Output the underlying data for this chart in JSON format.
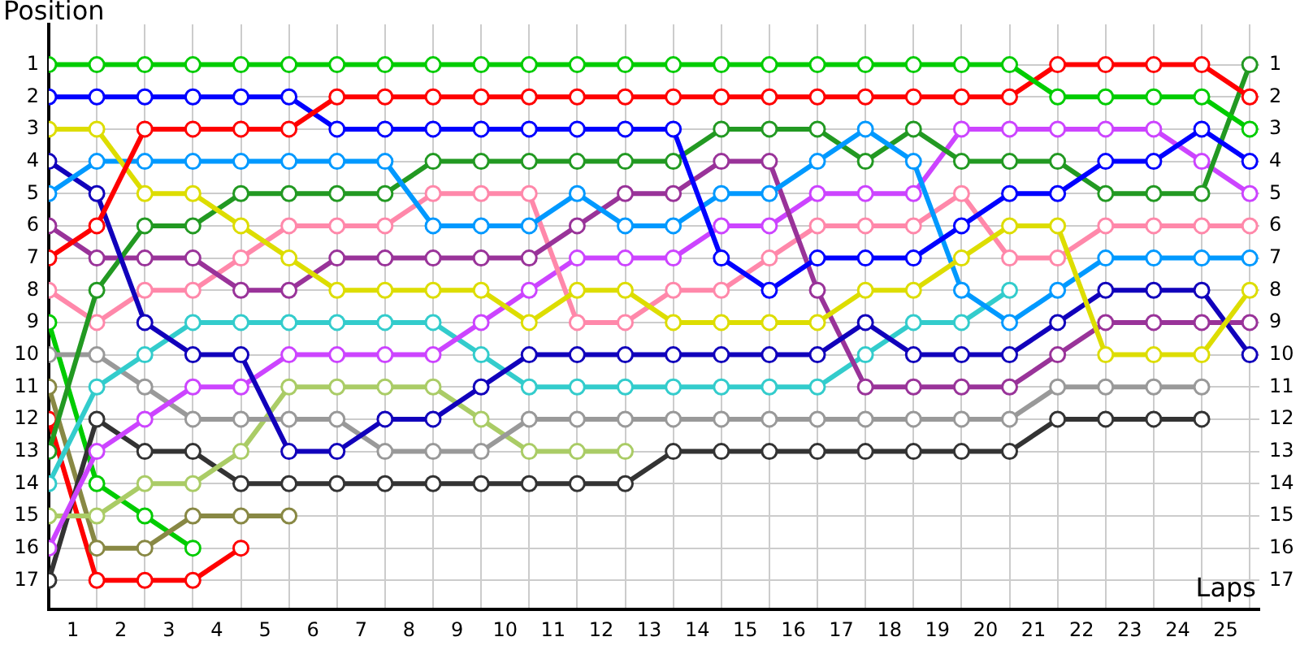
{
  "chart_data": {
    "type": "line",
    "xlabel": "Laps",
    "ylabel": "Position",
    "x": [
      0,
      1,
      2,
      3,
      4,
      5,
      6,
      7,
      8,
      9,
      10,
      11,
      12,
      13,
      14,
      15,
      16,
      17,
      18,
      19,
      20,
      21,
      22,
      23,
      24,
      25
    ],
    "series": [
      {
        "color": "#00cc00",
        "values": [
          1,
          1,
          1,
          1,
          1,
          1,
          1,
          1,
          1,
          1,
          1,
          1,
          1,
          1,
          1,
          1,
          1,
          1,
          1,
          1,
          1,
          2,
          2,
          2,
          2,
          3
        ]
      },
      {
        "color": "#ff0000",
        "values": [
          7,
          6,
          3,
          3,
          3,
          3,
          2,
          2,
          2,
          2,
          2,
          2,
          2,
          2,
          2,
          2,
          2,
          2,
          2,
          2,
          2,
          1,
          1,
          1,
          1,
          2
        ]
      },
      {
        "color": "#0000ff",
        "values": [
          2,
          2,
          2,
          2,
          2,
          2,
          3,
          3,
          3,
          3,
          3,
          3,
          3,
          3,
          7,
          8,
          7,
          7,
          7,
          6,
          5,
          5,
          4,
          4,
          3,
          4
        ]
      },
      {
        "color": "#dddd00",
        "values": [
          3,
          3,
          5,
          5,
          6,
          7,
          8,
          8,
          8,
          8,
          9,
          8,
          8,
          9,
          9,
          9,
          9,
          8,
          8,
          7,
          6,
          6,
          10,
          10,
          10,
          8
        ]
      },
      {
        "color": "#0099ff",
        "values": [
          5,
          4,
          4,
          4,
          4,
          4,
          4,
          4,
          6,
          6,
          6,
          5,
          6,
          6,
          5,
          5,
          4,
          3,
          4,
          8,
          9,
          8,
          7,
          7,
          7,
          7
        ]
      },
      {
        "color": "#1100bb",
        "values": [
          4,
          5,
          9,
          10,
          10,
          13,
          13,
          12,
          12,
          11,
          10,
          10,
          10,
          10,
          10,
          10,
          10,
          9,
          10,
          10,
          10,
          9,
          8,
          8,
          8,
          10
        ]
      },
      {
        "color": "#229922",
        "values": [
          13,
          8,
          6,
          6,
          5,
          5,
          5,
          5,
          4,
          4,
          4,
          4,
          4,
          4,
          3,
          3,
          3,
          4,
          3,
          4,
          4,
          4,
          5,
          5,
          5,
          1
        ]
      },
      {
        "color": "#993399",
        "values": [
          6,
          7,
          7,
          7,
          8,
          8,
          7,
          7,
          7,
          7,
          7,
          6,
          5,
          5,
          4,
          4,
          8,
          11,
          11,
          11,
          11,
          10,
          9,
          9,
          9,
          9
        ]
      },
      {
        "color": "#ff88aa",
        "values": [
          8,
          9,
          8,
          8,
          7,
          6,
          6,
          6,
          5,
          5,
          5,
          9,
          9,
          8,
          8,
          7,
          6,
          6,
          6,
          5,
          7,
          7,
          6,
          6,
          6,
          6
        ]
      },
      {
        "color": "#cc44ff",
        "values": [
          16,
          13,
          12,
          11,
          11,
          10,
          10,
          10,
          10,
          9,
          8,
          7,
          7,
          7,
          6,
          6,
          5,
          5,
          5,
          3,
          3,
          3,
          3,
          3,
          4,
          5
        ]
      },
      {
        "color": "#33cccc",
        "values": [
          14,
          11,
          10,
          9,
          9,
          9,
          9,
          9,
          9,
          10,
          11,
          11,
          11,
          11,
          11,
          11,
          11,
          10,
          9,
          9,
          8,
          null,
          null,
          null,
          null,
          null
        ]
      },
      {
        "color": "#999999",
        "values": [
          10,
          10,
          11,
          12,
          12,
          12,
          12,
          13,
          13,
          13,
          12,
          12,
          12,
          12,
          12,
          12,
          12,
          12,
          12,
          12,
          12,
          11,
          11,
          11,
          11,
          null
        ]
      },
      {
        "color": "#aacc66",
        "values": [
          15,
          15,
          14,
          14,
          13,
          11,
          11,
          11,
          11,
          12,
          13,
          13,
          13,
          null,
          null,
          null,
          null,
          null,
          null,
          null,
          null,
          null,
          null,
          null,
          null,
          null
        ]
      },
      {
        "color": "#333333",
        "values": [
          17,
          12,
          13,
          13,
          14,
          14,
          14,
          14,
          14,
          14,
          14,
          14,
          14,
          13,
          13,
          13,
          13,
          13,
          13,
          13,
          13,
          12,
          12,
          12,
          12,
          null
        ]
      },
      {
        "color": "#888844",
        "values": [
          11,
          16,
          16,
          15,
          15,
          15,
          null,
          null,
          null,
          null,
          null,
          null,
          null,
          null,
          null,
          null,
          null,
          null,
          null,
          null,
          null,
          null,
          null,
          null,
          null,
          null
        ]
      },
      {
        "color": "#00cc00",
        "values": [
          9,
          14,
          15,
          16,
          null,
          null,
          null,
          null,
          null,
          null,
          null,
          null,
          null,
          null,
          null,
          null,
          null,
          null,
          null,
          null,
          null,
          null,
          null,
          null,
          null,
          null
        ]
      },
      {
        "color": "#ff0000",
        "values": [
          12,
          17,
          17,
          17,
          16,
          null,
          null,
          null,
          null,
          null,
          null,
          null,
          null,
          null,
          null,
          null,
          null,
          null,
          null,
          null,
          null,
          null,
          null,
          null,
          null,
          null
        ]
      }
    ],
    "xlim": [
      0,
      25.2
    ],
    "xticks": [
      {
        "value": 0,
        "label": null
      },
      {
        "value": 0.5,
        "label": "1"
      },
      {
        "value": 1,
        "label": null
      },
      {
        "value": 1.5,
        "label": "2"
      },
      {
        "value": 2,
        "label": null
      },
      {
        "value": 2.5,
        "label": "3"
      },
      {
        "value": 3,
        "label": null
      },
      {
        "value": 3.5,
        "label": "4"
      },
      {
        "value": 4,
        "label": null
      },
      {
        "value": 4.5,
        "label": "5"
      },
      {
        "value": 5,
        "label": null
      },
      {
        "value": 5.5,
        "label": "6"
      },
      {
        "value": 6,
        "label": null
      },
      {
        "value": 6.5,
        "label": "7"
      },
      {
        "value": 7,
        "label": null
      },
      {
        "value": 7.5,
        "label": "8"
      },
      {
        "value": 8,
        "label": null
      },
      {
        "value": 8.5,
        "label": "9"
      },
      {
        "value": 9,
        "label": null
      },
      {
        "value": 9.5,
        "label": "10"
      },
      {
        "value": 10,
        "label": null
      },
      {
        "value": 10.5,
        "label": "11"
      },
      {
        "value": 11,
        "label": null
      },
      {
        "value": 11.5,
        "label": "12"
      },
      {
        "value": 12,
        "label": null
      },
      {
        "value": 12.5,
        "label": "13"
      },
      {
        "value": 13,
        "label": null
      },
      {
        "value": 13.5,
        "label": "14"
      },
      {
        "value": 14,
        "label": null
      },
      {
        "value": 14.5,
        "label": "15"
      },
      {
        "value": 15,
        "label": null
      },
      {
        "value": 15.5,
        "label": "16"
      },
      {
        "value": 16,
        "label": null
      },
      {
        "value": 16.5,
        "label": "17"
      },
      {
        "value": 17,
        "label": null
      },
      {
        "value": 17.5,
        "label": "18"
      },
      {
        "value": 18,
        "label": null
      },
      {
        "value": 18.5,
        "label": "19"
      },
      {
        "value": 19,
        "label": null
      },
      {
        "value": 19.5,
        "label": "20"
      },
      {
        "value": 20,
        "label": null
      },
      {
        "value": 20.5,
        "label": "21"
      },
      {
        "value": 21,
        "label": null
      },
      {
        "value": 21.5,
        "label": "22"
      },
      {
        "value": 22,
        "label": null
      },
      {
        "value": 22.5,
        "label": "23"
      },
      {
        "value": 23,
        "label": null
      },
      {
        "value": 23.5,
        "label": "24"
      },
      {
        "value": 24,
        "label": null
      },
      {
        "value": 24.5,
        "label": "25"
      },
      {
        "value": 25,
        "label": null
      }
    ],
    "ylim": [
      17.9,
      -0.25
    ],
    "yticks": [
      1,
      2,
      3,
      4,
      5,
      6,
      7,
      8,
      9,
      10,
      11,
      12,
      13,
      14,
      15,
      16,
      17
    ],
    "y2lim": [
      17.9,
      -0.25
    ],
    "y2ticks": [
      1,
      2,
      3,
      4,
      5,
      6,
      7,
      8,
      9,
      10,
      11,
      12,
      13,
      14,
      15,
      16,
      17
    ],
    "grid": true,
    "marker": "circle",
    "line_style": "solid"
  }
}
